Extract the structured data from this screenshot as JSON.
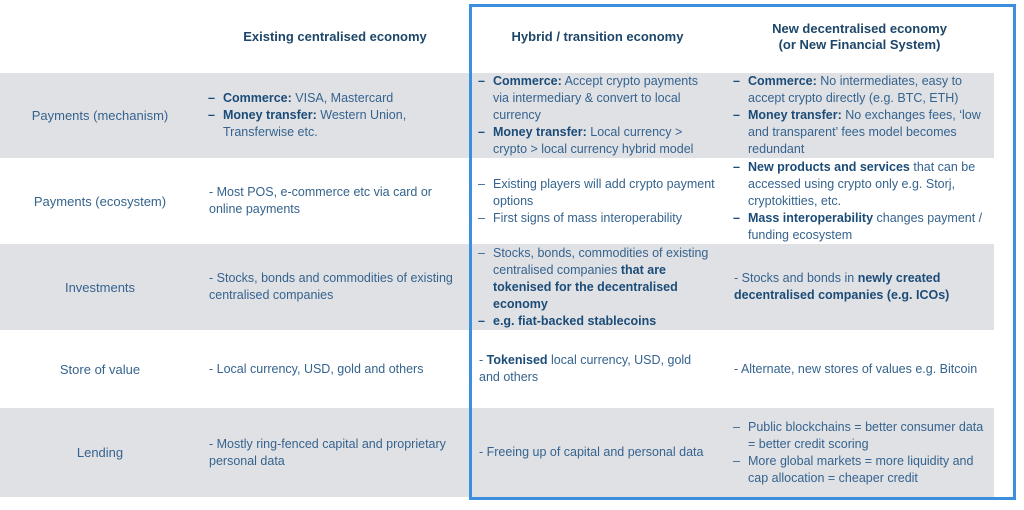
{
  "palette": {
    "frame_blue": "#3c8fdf",
    "stripe_gray": "#e0e1e5",
    "body_text": "#35638e",
    "bold_text": "#1b4c77",
    "header_text": "#1d4669",
    "background": "#ffffff"
  },
  "headers": {
    "col1": "Existing centralised economy",
    "col2": "Hybrid / transition economy",
    "col3_line1": "New decentralised economy",
    "col3_line2": "(or New Financial System)"
  },
  "rows": [
    {
      "label": "Payments (mechanism)",
      "cells": [
        {
          "type": "list",
          "items": [
            [
              {
                "t": "Commerce:",
                "b": true
              },
              {
                "t": " VISA, Mastercard"
              }
            ],
            [
              {
                "t": "Money transfer:",
                "b": true
              },
              {
                "t": " Western Union, Transferwise etc."
              }
            ]
          ]
        },
        {
          "type": "list",
          "items": [
            [
              {
                "t": "Commerce:",
                "b": true
              },
              {
                "t": " Accept crypto payments via intermediary & convert to local currency"
              }
            ],
            [
              {
                "t": "Money transfer:",
                "b": true
              },
              {
                "t": " Local currency > crypto > local currency hybrid model"
              }
            ]
          ]
        },
        {
          "type": "list",
          "items": [
            [
              {
                "t": "Commerce:",
                "b": true
              },
              {
                "t": " No intermediates, easy to accept crypto directly (e.g. BTC, ETH)"
              }
            ],
            [
              {
                "t": "Money transfer:",
                "b": true
              },
              {
                "t": " No exchanges fees, ‘low and transparent’ fees model becomes redundant"
              }
            ]
          ]
        }
      ]
    },
    {
      "label": "Payments (ecosystem)",
      "cells": [
        {
          "type": "plain",
          "segs": [
            {
              "t": "- Most POS, e-commerce etc via card or online payments"
            }
          ]
        },
        {
          "type": "list",
          "items": [
            [
              {
                "t": "Existing players will add crypto payment options"
              }
            ],
            [
              {
                "t": "First signs of mass interoperability"
              }
            ]
          ]
        },
        {
          "type": "list",
          "items": [
            [
              {
                "t": "New products and services",
                "b": true
              },
              {
                "t": " that can be accessed using crypto only e.g. Storj, cryptokitties, etc."
              }
            ],
            [
              {
                "t": "Mass interoperability",
                "b": true
              },
              {
                "t": " changes payment / funding ecosystem"
              }
            ]
          ]
        }
      ]
    },
    {
      "label": "Investments",
      "cells": [
        {
          "type": "plain",
          "segs": [
            {
              "t": "- Stocks, bonds and commodities of existing centralised companies"
            }
          ]
        },
        {
          "type": "list",
          "items": [
            [
              {
                "t": "Stocks, bonds, commodities of existing centralised companies "
              },
              {
                "t": "that are tokenised for the decentralised economy",
                "b": true
              }
            ],
            [
              {
                "t": "e.g. fiat-backed stablecoins",
                "b": true
              }
            ]
          ]
        },
        {
          "type": "plain",
          "segs": [
            {
              "t": "- Stocks and bonds in "
            },
            {
              "t": "newly created decentralised companies (e.g. ICOs)",
              "b": true
            }
          ]
        }
      ]
    },
    {
      "label": "Store of value",
      "cells": [
        {
          "type": "plain",
          "segs": [
            {
              "t": "- Local currency, USD, gold and others"
            }
          ]
        },
        {
          "type": "plain",
          "segs": [
            {
              "t": "- "
            },
            {
              "t": "Tokenised",
              "b": true
            },
            {
              "t": " local currency, USD, gold and others"
            }
          ]
        },
        {
          "type": "plain",
          "segs": [
            {
              "t": "- Alternate, new stores of values e.g. Bitcoin"
            }
          ]
        }
      ]
    },
    {
      "label": "Lending",
      "cells": [
        {
          "type": "plain",
          "segs": [
            {
              "t": "- Mostly ring-fenced capital and proprietary personal data"
            }
          ]
        },
        {
          "type": "plain",
          "segs": [
            {
              "t": "- Freeing up of capital and personal data"
            }
          ]
        },
        {
          "type": "list",
          "items": [
            [
              {
                "t": "Public blockchains = better consumer data = better credit scoring"
              }
            ],
            [
              {
                "t": "More global markets = more liquidity and cap allocation = cheaper credit"
              }
            ]
          ]
        }
      ]
    }
  ]
}
